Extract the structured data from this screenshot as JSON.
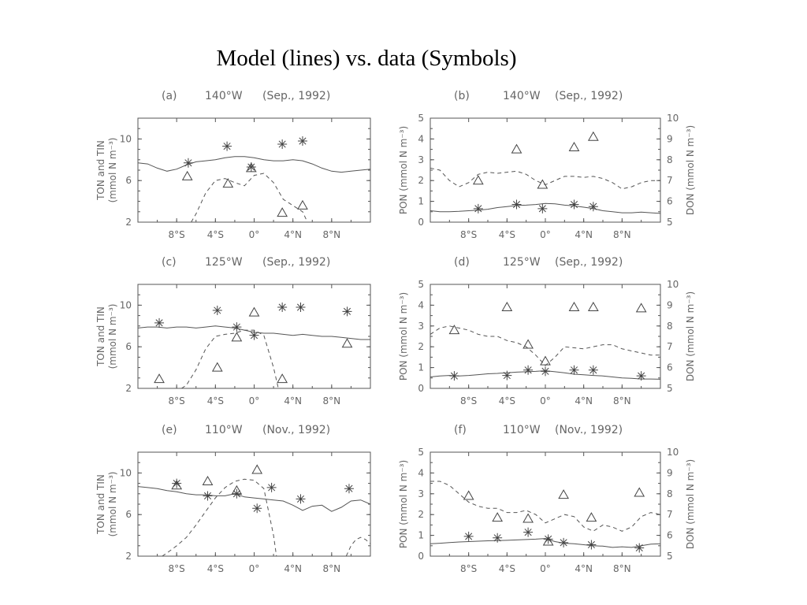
{
  "title": "Model (lines) vs. data (Symbols)",
  "chart_data": [
    {
      "id": "a",
      "type": "line",
      "label": "(a)",
      "location": "140°W",
      "period": "(Sep., 1992)",
      "ylabel": "TON and TIN (mmol N m⁻³)",
      "ylabel_line1": "TON and TIN",
      "ylabel_line2": "(mmol N m⁻³)",
      "xlim": [
        -12,
        12
      ],
      "ylim": [
        2,
        12
      ],
      "yticks": [
        2,
        6,
        10
      ],
      "xticks": [
        -8,
        -4,
        0,
        4,
        8
      ],
      "xtick_labels": [
        "8°S",
        "4°S",
        "0°",
        "4°N",
        "8°N"
      ],
      "lines": [
        {
          "style": "solid",
          "axis": "left",
          "x": [
            -12,
            -11,
            -10,
            -9,
            -8,
            -7,
            -6,
            -5,
            -4,
            -3,
            -2,
            -1,
            0,
            1,
            2,
            3,
            4,
            5,
            6,
            7,
            8,
            9,
            10,
            11,
            12
          ],
          "y": [
            7.7,
            7.6,
            7.2,
            6.9,
            7.1,
            7.5,
            7.8,
            7.9,
            8.0,
            8.2,
            8.3,
            8.3,
            8.2,
            8.0,
            7.9,
            7.9,
            8.0,
            7.9,
            7.6,
            7.2,
            6.9,
            6.8,
            6.9,
            7.0,
            7.1
          ]
        },
        {
          "style": "dashed",
          "axis": "left",
          "x": [
            -6.5,
            -6,
            -5,
            -4,
            -3,
            -2,
            -1,
            0,
            1,
            2,
            3,
            4,
            5,
            5.5
          ],
          "y": [
            2.0,
            2.8,
            4.8,
            6.0,
            6.2,
            5.8,
            5.5,
            6.5,
            6.7,
            5.8,
            4.2,
            3.6,
            3.0,
            2.0
          ]
        }
      ],
      "stars": {
        "axis": "left",
        "x": [
          -6.8,
          -2.8,
          2.9,
          5.0,
          -0.3
        ],
        "y": [
          7.7,
          9.3,
          9.5,
          9.8,
          7.3
        ]
      },
      "triangles": {
        "axis": "left",
        "x": [
          -6.9,
          -2.7,
          -0.3,
          2.9,
          5.0
        ],
        "y": [
          6.4,
          5.7,
          7.2,
          2.9,
          3.6
        ]
      }
    },
    {
      "id": "b",
      "type": "line",
      "label": "(b)",
      "location": "140°W",
      "period": "(Sep., 1992)",
      "ylabel": "PON (mmol N m⁻³)",
      "ylabel2": "DON (mmol N m⁻³)",
      "xlim": [
        -12,
        12
      ],
      "ylim": [
        0,
        5
      ],
      "ylim2": [
        5,
        10
      ],
      "yticks": [
        0,
        1,
        2,
        3,
        4,
        5
      ],
      "yticks2": [
        5,
        6,
        7,
        8,
        9,
        10
      ],
      "xticks": [
        -8,
        -4,
        0,
        4,
        8
      ],
      "xtick_labels": [
        "8°S",
        "4°S",
        "0°",
        "4°N",
        "8°N"
      ],
      "lines": [
        {
          "style": "solid",
          "axis": "left",
          "x": [
            -12,
            -11,
            -10,
            -9,
            -8,
            -7,
            -6,
            -5,
            -4,
            -3,
            -2,
            -1,
            0,
            1,
            2,
            3,
            4,
            5,
            6,
            7,
            8,
            9,
            10,
            11,
            12
          ],
          "y": [
            0.55,
            0.5,
            0.5,
            0.52,
            0.55,
            0.58,
            0.62,
            0.7,
            0.75,
            0.8,
            0.82,
            0.85,
            0.9,
            0.88,
            0.82,
            0.78,
            0.72,
            0.65,
            0.55,
            0.5,
            0.45,
            0.45,
            0.48,
            0.45,
            0.42
          ]
        },
        {
          "style": "dashed",
          "axis": "right",
          "x": [
            -12,
            -11,
            -10,
            -9,
            -8,
            -7,
            -6,
            -5,
            -4,
            -3,
            -2,
            -1,
            0,
            1,
            2,
            3,
            4,
            5,
            6,
            7,
            8,
            9,
            10,
            11,
            12
          ],
          "y": [
            7.6,
            7.5,
            7.0,
            6.7,
            6.9,
            7.3,
            7.4,
            7.35,
            7.4,
            7.45,
            7.3,
            7.0,
            6.8,
            7.0,
            7.2,
            7.2,
            7.15,
            7.2,
            7.1,
            6.9,
            6.6,
            6.7,
            6.9,
            7.0,
            7.0
          ]
        }
      ],
      "stars": {
        "axis": "left",
        "x": [
          -7.0,
          -3.0,
          -0.3,
          3.0,
          5.0
        ],
        "y": [
          0.65,
          0.85,
          0.65,
          0.85,
          0.75
        ]
      },
      "triangles": {
        "axis": "right",
        "x": [
          -7.0,
          -3.0,
          -0.3,
          3.0,
          5.0
        ],
        "y": [
          7.0,
          8.5,
          6.8,
          8.6,
          9.1
        ]
      }
    },
    {
      "id": "c",
      "type": "line",
      "label": "(c)",
      "location": "125°W",
      "period": "(Sep., 1992)",
      "ylabel": "TON and TIN (mmol N m⁻³)",
      "ylabel_line1": "TON and TIN",
      "ylabel_line2": "(mmol N m⁻³)",
      "xlim": [
        -12,
        12
      ],
      "ylim": [
        2,
        12
      ],
      "yticks": [
        2,
        6,
        10
      ],
      "xticks": [
        -8,
        -4,
        0,
        4,
        8
      ],
      "xtick_labels": [
        "8°S",
        "4°S",
        "0°",
        "4°N",
        "8°N"
      ],
      "lines": [
        {
          "style": "solid",
          "axis": "left",
          "x": [
            -12,
            -11,
            -10,
            -9,
            -8,
            -7,
            -6,
            -5,
            -4,
            -3,
            -2,
            -1,
            0,
            1,
            2,
            3,
            4,
            5,
            6,
            7,
            8,
            9,
            10,
            11,
            12
          ],
          "y": [
            7.8,
            7.9,
            7.9,
            7.8,
            7.9,
            7.9,
            7.8,
            7.9,
            8.0,
            7.9,
            7.8,
            7.6,
            7.4,
            7.3,
            7.3,
            7.2,
            7.1,
            7.2,
            7.1,
            7.0,
            7.0,
            6.9,
            6.8,
            6.7,
            6.7
          ]
        },
        {
          "style": "dashed",
          "axis": "left",
          "x": [
            -7.5,
            -7,
            -6,
            -5,
            -4,
            -3,
            -2,
            -1,
            0,
            1,
            2,
            2.5
          ],
          "y": [
            2.0,
            2.3,
            3.8,
            5.8,
            7.0,
            7.2,
            7.3,
            7.6,
            7.6,
            7.1,
            4.0,
            2.0
          ]
        }
      ],
      "stars": {
        "axis": "left",
        "x": [
          -9.8,
          -3.8,
          -1.8,
          0,
          2.9,
          4.8,
          9.6
        ],
        "y": [
          8.3,
          9.5,
          7.9,
          7.1,
          9.8,
          9.8,
          9.4
        ]
      },
      "triangles": {
        "axis": "left",
        "x": [
          -9.8,
          -3.8,
          -1.8,
          0,
          2.9,
          9.6
        ],
        "y": [
          2.9,
          4.0,
          6.9,
          9.3,
          2.9,
          6.3
        ]
      }
    },
    {
      "id": "d",
      "type": "line",
      "label": "(d)",
      "location": "125°W",
      "period": "(Sep., 1992)",
      "ylabel": "PON (mmol N m⁻³)",
      "ylabel2": "DON (mmol N m⁻³)",
      "xlim": [
        -12,
        12
      ],
      "ylim": [
        0,
        5
      ],
      "ylim2": [
        5,
        10
      ],
      "yticks": [
        0,
        1,
        2,
        3,
        4,
        5
      ],
      "yticks2": [
        5,
        6,
        7,
        8,
        9,
        10
      ],
      "xticks": [
        -8,
        -4,
        0,
        4,
        8
      ],
      "xtick_labels": [
        "8°S",
        "4°S",
        "0°",
        "4°N",
        "8°N"
      ],
      "lines": [
        {
          "style": "solid",
          "axis": "left",
          "x": [
            -12,
            -11,
            -10,
            -9,
            -8,
            -7,
            -6,
            -5,
            -4,
            -3,
            -2,
            -1,
            0,
            1,
            2,
            3,
            4,
            5,
            6,
            7,
            8,
            9,
            10,
            11,
            12
          ],
          "y": [
            0.55,
            0.6,
            0.62,
            0.6,
            0.62,
            0.66,
            0.7,
            0.72,
            0.75,
            0.78,
            0.8,
            0.82,
            0.85,
            0.8,
            0.75,
            0.68,
            0.65,
            0.62,
            0.6,
            0.55,
            0.5,
            0.48,
            0.45,
            0.45,
            0.44
          ]
        },
        {
          "style": "dashed",
          "axis": "right",
          "x": [
            -12,
            -11,
            -10,
            -9,
            -8,
            -7,
            -6,
            -5,
            -4,
            -3,
            -2,
            -1,
            0,
            1,
            2,
            3,
            4,
            5,
            6,
            7,
            8,
            9,
            10,
            11,
            12
          ],
          "y": [
            7.6,
            7.9,
            8.0,
            7.9,
            7.8,
            7.6,
            7.5,
            7.5,
            7.3,
            7.2,
            7.0,
            6.6,
            6.1,
            6.5,
            7.0,
            6.95,
            6.9,
            7.0,
            7.1,
            7.1,
            6.9,
            6.8,
            6.7,
            6.6,
            6.6
          ]
        }
      ],
      "stars": {
        "axis": "left",
        "x": [
          -9.5,
          -4.0,
          -1.8,
          0,
          3.0,
          5.0,
          10.0
        ],
        "y": [
          0.6,
          0.62,
          0.88,
          0.82,
          0.88,
          0.88,
          0.6
        ]
      },
      "triangles": {
        "axis": "right",
        "x": [
          -9.5,
          -4.0,
          -1.8,
          0,
          3.0,
          5.0,
          10.0
        ],
        "y": [
          7.8,
          8.9,
          7.1,
          6.3,
          8.9,
          8.9,
          8.85
        ]
      }
    },
    {
      "id": "e",
      "type": "line",
      "label": "(e)",
      "location": "110°W",
      "period": "(Nov., 1992)",
      "ylabel": "TON and TIN (mmol N m⁻³)",
      "ylabel_line1": "TON and TIN",
      "ylabel_line2": "(mmol N m⁻³)",
      "xlim": [
        -12,
        12
      ],
      "ylim": [
        2,
        12
      ],
      "yticks": [
        2,
        6,
        10
      ],
      "xticks": [
        -8,
        -4,
        0,
        4,
        8
      ],
      "xtick_labels": [
        "8°S",
        "4°S",
        "0°",
        "4°N",
        "8°N"
      ],
      "lines": [
        {
          "style": "solid",
          "axis": "left",
          "x": [
            -12,
            -11,
            -10,
            -9,
            -8,
            -7,
            -6,
            -5,
            -4,
            -3,
            -2,
            -1,
            0,
            1,
            2,
            3,
            4,
            5,
            6,
            7,
            8,
            9,
            10,
            11,
            12
          ],
          "y": [
            8.7,
            8.6,
            8.5,
            8.3,
            8.2,
            8.0,
            7.9,
            7.9,
            7.8,
            7.8,
            8.0,
            7.7,
            7.6,
            7.5,
            7.4,
            7.3,
            6.9,
            6.4,
            6.8,
            6.9,
            6.3,
            6.7,
            7.3,
            7.4,
            7.0
          ]
        },
        {
          "style": "dashed",
          "axis": "left",
          "x": [
            -9.5,
            -9,
            -8,
            -7,
            -6,
            -5,
            -4,
            -3,
            -2,
            -1,
            0,
            1,
            2,
            2.3
          ],
          "y": [
            2.0,
            2.3,
            3.0,
            3.8,
            5.0,
            6.3,
            7.6,
            8.6,
            9.2,
            9.4,
            9.3,
            8.5,
            4.0,
            2.0
          ]
        },
        {
          "style": "dashed",
          "axis": "left",
          "x": [
            9.5,
            10,
            10.5,
            11,
            11.5,
            12
          ],
          "y": [
            2.0,
            3.0,
            3.6,
            3.8,
            3.6,
            3.2
          ]
        }
      ],
      "stars": {
        "axis": "left",
        "x": [
          -8.0,
          -4.8,
          -1.8,
          0.3,
          1.8,
          4.8,
          9.8
        ],
        "y": [
          9.0,
          7.8,
          8.0,
          6.6,
          8.6,
          7.5,
          8.5
        ]
      },
      "triangles": {
        "axis": "left",
        "x": [
          -8.0,
          -4.8,
          -1.8,
          0.3
        ],
        "y": [
          8.8,
          9.2,
          8.3,
          10.3
        ]
      }
    },
    {
      "id": "f",
      "type": "line",
      "label": "(f)",
      "location": "110°W",
      "period": "(Nov., 1992)",
      "ylabel": "PON (mmol N m⁻³)",
      "ylabel2": "DON (mmol N m⁻³)",
      "xlim": [
        -12,
        12
      ],
      "ylim": [
        0,
        5
      ],
      "ylim2": [
        5,
        10
      ],
      "yticks": [
        0,
        1,
        2,
        3,
        4,
        5
      ],
      "yticks2": [
        5,
        6,
        7,
        8,
        9,
        10
      ],
      "xticks": [
        -8,
        -4,
        0,
        4,
        8
      ],
      "xtick_labels": [
        "8°S",
        "4°S",
        "0°",
        "4°N",
        "8°N"
      ],
      "lines": [
        {
          "style": "solid",
          "axis": "left",
          "x": [
            -12,
            -11,
            -10,
            -9,
            -8,
            -7,
            -6,
            -5,
            -4,
            -3,
            -2,
            -1,
            0,
            1,
            2,
            3,
            4,
            5,
            6,
            7,
            8,
            9,
            10,
            11,
            12
          ],
          "y": [
            0.6,
            0.62,
            0.65,
            0.68,
            0.7,
            0.72,
            0.74,
            0.75,
            0.76,
            0.78,
            0.8,
            0.82,
            0.85,
            0.7,
            0.62,
            0.6,
            0.55,
            0.5,
            0.48,
            0.42,
            0.45,
            0.42,
            0.5,
            0.58,
            0.6
          ]
        },
        {
          "style": "dashed",
          "axis": "right",
          "x": [
            -12,
            -11,
            -10,
            -9,
            -8,
            -7,
            -6,
            -5,
            -4,
            -3,
            -2,
            -1,
            0,
            1,
            2,
            3,
            4,
            5,
            6,
            7,
            8,
            9,
            10,
            11,
            12
          ],
          "y": [
            8.6,
            8.6,
            8.4,
            8.0,
            7.6,
            7.4,
            7.3,
            7.3,
            7.1,
            7.1,
            7.2,
            7.0,
            6.6,
            6.8,
            7.0,
            6.9,
            6.4,
            6.2,
            6.5,
            6.4,
            6.2,
            6.4,
            6.9,
            7.1,
            7.0
          ]
        }
      ],
      "stars": {
        "axis": "left",
        "x": [
          -8.0,
          -5.0,
          -1.8,
          0.3,
          1.9,
          4.8,
          9.8
        ],
        "y": [
          0.95,
          0.88,
          1.15,
          0.82,
          0.65,
          0.55,
          0.4
        ]
      },
      "triangles": {
        "axis": "right",
        "x": [
          -8.0,
          -5.0,
          -1.8,
          0.3,
          1.9,
          4.8,
          9.8
        ],
        "y": [
          7.9,
          6.85,
          6.8,
          5.7,
          7.95,
          6.85,
          8.05
        ]
      }
    }
  ]
}
